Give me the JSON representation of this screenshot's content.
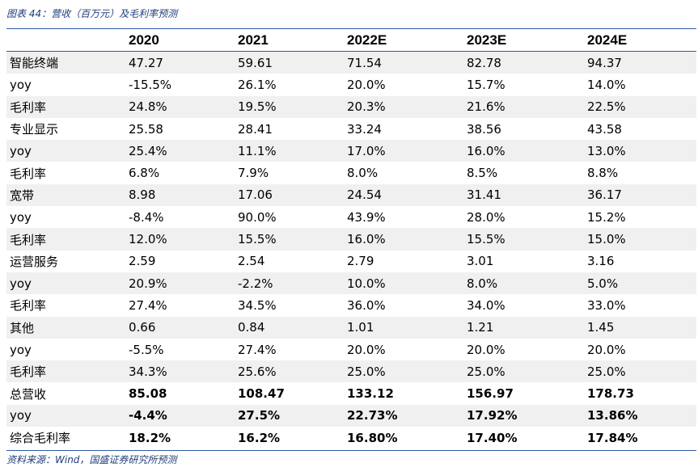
{
  "caption": "图表 44：营收（百万元）及毛利率预测",
  "source": "资料来源：Wind，国盛证券研究所预测",
  "table": {
    "header": [
      "",
      "2020",
      "2021",
      "2022E",
      "2023E",
      "2024E"
    ],
    "rows": [
      [
        "智能终端",
        "47.27",
        "59.61",
        "71.54",
        "82.78",
        "94.37"
      ],
      [
        "yoy",
        "-15.5%",
        "26.1%",
        "20.0%",
        "15.7%",
        "14.0%"
      ],
      [
        "毛利率",
        "24.8%",
        "19.5%",
        "20.3%",
        "21.6%",
        "22.5%"
      ],
      [
        "专业显示",
        "25.58",
        "28.41",
        "33.24",
        "38.56",
        "43.58"
      ],
      [
        "yoy",
        "25.4%",
        "11.1%",
        "17.0%",
        "16.0%",
        "13.0%"
      ],
      [
        "毛利率",
        "6.8%",
        "7.9%",
        "8.0%",
        "8.5%",
        "8.8%"
      ],
      [
        "宽带",
        "8.98",
        "17.06",
        "24.54",
        "31.41",
        "36.17"
      ],
      [
        "yoy",
        "-8.4%",
        "90.0%",
        "43.9%",
        "28.0%",
        "15.2%"
      ],
      [
        "毛利率",
        "12.0%",
        "15.5%",
        "16.0%",
        "15.5%",
        "15.0%"
      ],
      [
        "运营服务",
        "2.59",
        "2.54",
        "2.79",
        "3.01",
        "3.16"
      ],
      [
        "yoy",
        "20.9%",
        "-2.2%",
        "10.0%",
        "8.0%",
        "5.0%"
      ],
      [
        "毛利率",
        "27.4%",
        "34.5%",
        "36.0%",
        "34.0%",
        "33.0%"
      ],
      [
        "其他",
        "0.66",
        "0.84",
        "1.01",
        "1.21",
        "1.45"
      ],
      [
        "yoy",
        "-5.5%",
        "27.4%",
        "20.0%",
        "20.0%",
        "20.0%"
      ],
      [
        "毛利率",
        "34.3%",
        "25.6%",
        "25.0%",
        "25.0%",
        "25.0%"
      ],
      [
        "总营收",
        "85.08",
        "108.47",
        "133.12",
        "156.97",
        "178.73"
      ],
      [
        "yoy",
        "-4.4%",
        "27.5%",
        "22.73%",
        "17.92%",
        "13.86%"
      ],
      [
        "综合毛利率",
        "18.2%",
        "16.2%",
        "16.80%",
        "17.40%",
        "17.84%"
      ]
    ]
  },
  "colors": {
    "caption_text": "#1f3d7a",
    "rule": "#2e5aa8",
    "row_shade": "#f0f0f0"
  }
}
